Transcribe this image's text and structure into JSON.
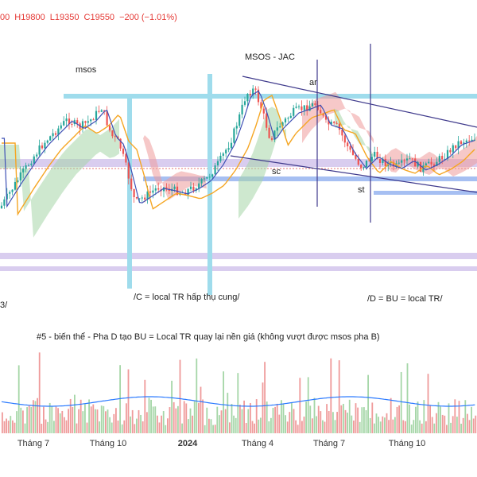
{
  "header": {
    "open": "00",
    "high": "H19800",
    "low": "L19350",
    "close": "C19550",
    "change": "−200 (−1.01%)"
  },
  "annotations": {
    "msos": "msos",
    "msos_jac": "MSOS - JAC",
    "ar": "ar",
    "sc": "sc",
    "st": "st",
    "phase_c": "/C = local TR hấp thụ cung/",
    "phase_d": "/D = BU = local TR/",
    "phase_b": "3/",
    "note": "#5 - biến thể - Pha D tạo BU = Local TR quay lại nền giá (không vượt được msos pha B)"
  },
  "colors": {
    "up": "#26a69a",
    "down": "#ef5350",
    "ma_fast": "#3f51b5",
    "ma_slow": "#f5a623",
    "cloud_green": "#a5d6a7",
    "cloud_red": "#ef9a9a",
    "channel": "#3f3a8c",
    "zone_cyan": "#9fdcec",
    "zone_purple": "#c9b8e8",
    "zone_blue": "#a6bff2",
    "volume_line": "#2979ff"
  },
  "chart_data": {
    "type": "candlestick",
    "x_ticks": [
      "Tháng 7",
      "Tháng 10",
      "2024",
      "Tháng 4",
      "Tháng 7",
      "Tháng 10"
    ],
    "x_ticks_bold": [
      "2024"
    ],
    "volume": true,
    "indicators": [
      "moving average (fast)",
      "moving average (slow)",
      "ichimoku cloud"
    ]
  }
}
